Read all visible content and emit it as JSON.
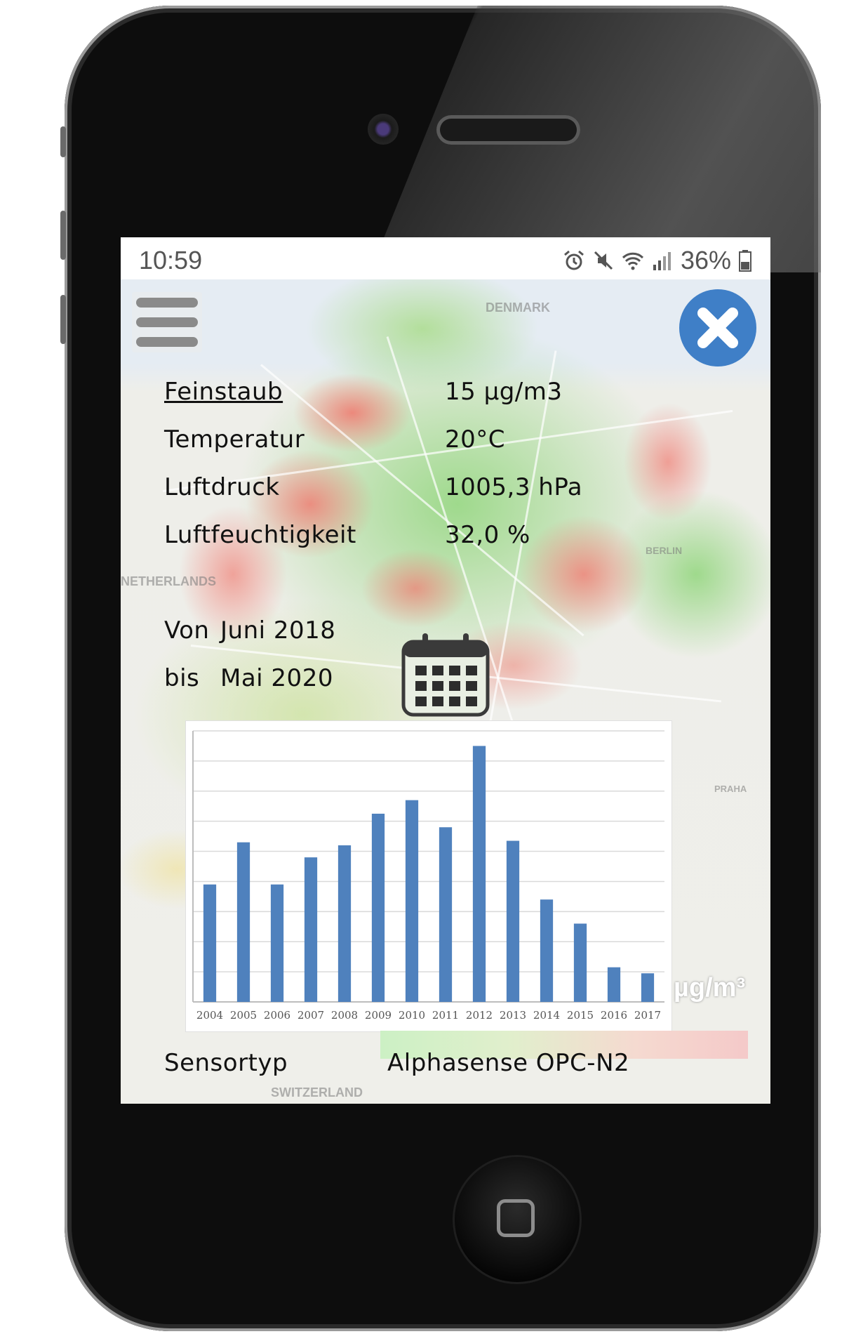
{
  "status_bar": {
    "time": "10:59",
    "battery": "36%",
    "icons": [
      "alarm-icon",
      "mute-icon",
      "wifi-icon",
      "signal-icon",
      "battery-icon"
    ]
  },
  "map_labels": [
    "DENMARK",
    "BERLIN",
    "PRAHA",
    "SWITZERLAND",
    "NETHERLANDS"
  ],
  "measurements": [
    {
      "label": "Feinstaub",
      "value": "15 µg/m3"
    },
    {
      "label": "Temperatur",
      "value": "20°C"
    },
    {
      "label": "Luftdruck",
      "value": "1005,3 hPa"
    },
    {
      "label": "Luftfeuchtigkeit",
      "value": "32,0 %"
    }
  ],
  "period": {
    "from_label": "Von",
    "from_value": "Juni 2018",
    "to_label": "bis",
    "to_value": "Mai 2020"
  },
  "legend_unit": "µg/m³",
  "sensor": {
    "label": "Sensortyp",
    "value": "Alphasense OPC-N2"
  },
  "colors": {
    "accent": "#3f7fc7",
    "bar": "#4f81bd"
  },
  "chart_data": {
    "type": "bar",
    "categories": [
      "2004",
      "2005",
      "2006",
      "2007",
      "2008",
      "2009",
      "2010",
      "2011",
      "2012",
      "2013",
      "2014",
      "2015",
      "2016",
      "2017"
    ],
    "values": [
      39,
      53,
      39,
      48,
      52,
      62.5,
      67,
      58,
      85,
      53.5,
      34,
      26,
      11.5,
      9.5
    ],
    "ylim": [
      0,
      90
    ],
    "grid": true,
    "title": "",
    "xlabel": "",
    "ylabel": ""
  }
}
